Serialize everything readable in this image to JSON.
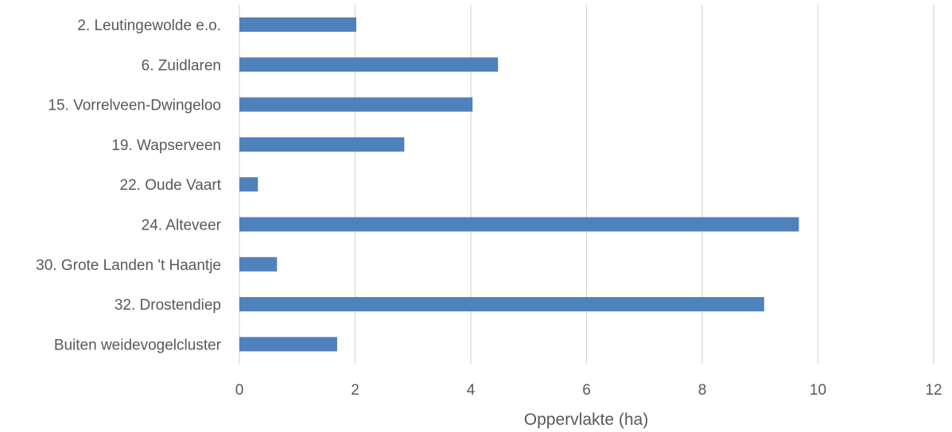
{
  "chart_data": {
    "type": "bar",
    "orientation": "horizontal",
    "categories": [
      "2. Leutingewolde e.o.",
      "6. Zuidlaren",
      "15. Vorrelveen-Dwingeloo",
      "19. Wapserveen",
      "22. Oude Vaart",
      "24. Alteveer",
      "30. Grote Landen 't Haantje",
      "32. Drostendiep",
      "Buiten weidevogelcluster"
    ],
    "series": [
      {
        "values": [
          2.02,
          4.47,
          4.03,
          2.85,
          0.32,
          9.67,
          0.65,
          9.07,
          1.69
        ]
      }
    ],
    "xlabel": "Oppervlakte (ha)",
    "ylabel": "",
    "xlim": [
      0,
      12
    ],
    "xticks": [
      "0",
      "2",
      "4",
      "6",
      "8",
      "10",
      "12"
    ],
    "grid": "vertical",
    "legend": "none",
    "colors": {
      "bar": "#4f81bd",
      "grid": "#d9d9d9",
      "text": "#595959"
    }
  }
}
